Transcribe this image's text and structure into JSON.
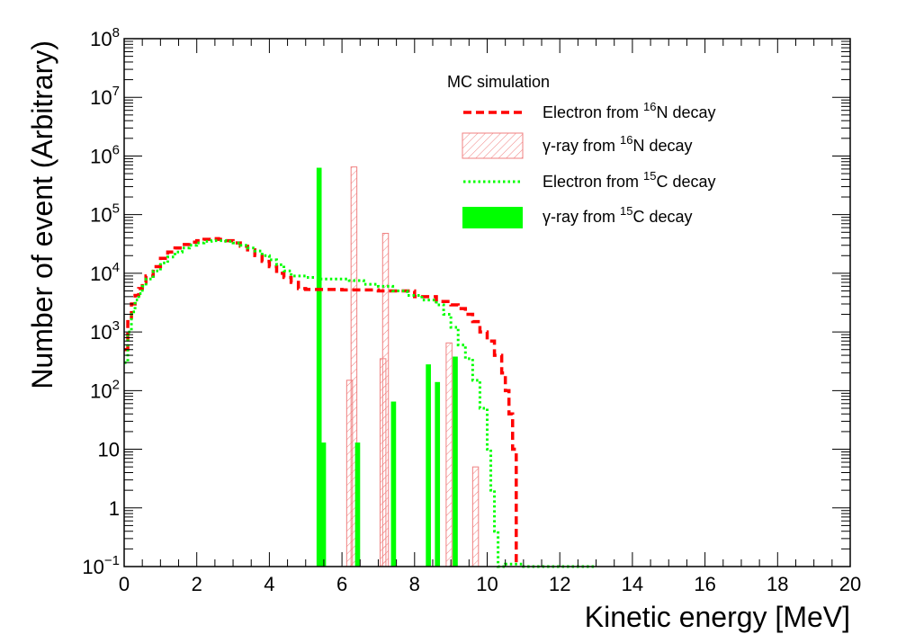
{
  "chart_data": {
    "type": "histogram",
    "title": "",
    "xlabel": "Kinetic energy [MeV]",
    "ylabel": "Number of event (Arbitrary)",
    "x_scale": "linear",
    "y_scale": "log",
    "xlim": [
      0,
      20
    ],
    "ylim": [
      0.1,
      100000000
    ],
    "x_ticks": [
      0,
      2,
      4,
      6,
      8,
      10,
      12,
      14,
      16,
      18,
      20
    ],
    "x_tick_labels": [
      "0",
      "2",
      "4",
      "6",
      "8",
      "10",
      "12",
      "14",
      "16",
      "18",
      "20"
    ],
    "y_ticks": [
      {
        "value": 0.1,
        "base": "10",
        "exp": "−1"
      },
      {
        "value": 1,
        "label": "1"
      },
      {
        "value": 10,
        "label": "10"
      },
      {
        "value": 100,
        "base": "10",
        "exp": "2"
      },
      {
        "value": 1000,
        "base": "10",
        "exp": "3"
      },
      {
        "value": 10000,
        "base": "10",
        "exp": "4"
      },
      {
        "value": 100000,
        "base": "10",
        "exp": "5"
      },
      {
        "value": 1000000,
        "base": "10",
        "exp": "6"
      },
      {
        "value": 10000000,
        "base": "10",
        "exp": "7"
      },
      {
        "value": 100000000,
        "base": "10",
        "exp": "8"
      }
    ],
    "legend": {
      "header": "MC simulation",
      "entries": [
        {
          "pre": "Electron from ",
          "sup": "16",
          "post": "N decay"
        },
        {
          "pre": "γ-ray from ",
          "sup": "16",
          "post": "N decay"
        },
        {
          "pre": "Electron from ",
          "sup": "15",
          "post": "C decay"
        },
        {
          "pre": "γ-ray from ",
          "sup": "15",
          "post": "C decay"
        }
      ]
    },
    "colors": {
      "electron_N16": "#ff0000",
      "gamma_N16": "#f08080",
      "electron_C15": "#00ff00",
      "gamma_C15": "#00ff00"
    },
    "series": [
      {
        "name": "Electron from 16N decay",
        "style": "dashed-step",
        "x": [
          0,
          0.1,
          0.2,
          0.3,
          0.4,
          0.5,
          0.6,
          0.8,
          1.0,
          1.2,
          1.4,
          1.6,
          1.8,
          2.0,
          2.2,
          2.4,
          2.6,
          2.8,
          3.0,
          3.2,
          3.4,
          3.6,
          3.8,
          4.0,
          4.2,
          4.4,
          4.6,
          4.8,
          5.0,
          5.4,
          6.0,
          7.0,
          8.0,
          8.6,
          9.0,
          9.2,
          9.4,
          9.6,
          9.8,
          10.0,
          10.2,
          10.4,
          10.5,
          10.6,
          10.7,
          10.8
        ],
        "values": [
          500,
          1500,
          3000,
          4200,
          5500,
          7000,
          9000,
          13000,
          18000,
          23000,
          27000,
          31000,
          34000,
          36000,
          38000,
          39000,
          38000,
          36000,
          33000,
          29000,
          25000,
          20000,
          16000,
          13000,
          10000,
          8500,
          7000,
          5500,
          5300,
          5300,
          5200,
          5000,
          4000,
          3300,
          2900,
          2500,
          2000,
          1500,
          1000,
          700,
          400,
          200,
          100,
          40,
          10,
          0.1
        ]
      },
      {
        "name": "Electron from 15C decay",
        "style": "dotted-step",
        "x": [
          0,
          0.1,
          0.2,
          0.3,
          0.4,
          0.5,
          0.6,
          0.8,
          1.0,
          1.2,
          1.4,
          1.6,
          1.8,
          2.0,
          2.2,
          2.4,
          2.6,
          2.8,
          3.0,
          3.2,
          3.4,
          3.6,
          3.8,
          4.0,
          4.2,
          4.4,
          4.6,
          5.0,
          5.4,
          5.8,
          6.2,
          6.6,
          7.0,
          7.4,
          7.8,
          8.2,
          8.6,
          8.8,
          9.0,
          9.2,
          9.4,
          9.6,
          9.8,
          10.0,
          10.1,
          10.2,
          10.3,
          10.5,
          11.0,
          13.0
        ],
        "values": [
          300,
          1000,
          2200,
          3500,
          4500,
          6000,
          8000,
          11000,
          15000,
          19000,
          23000,
          27000,
          30000,
          33000,
          35000,
          36000,
          36000,
          35000,
          33000,
          30000,
          27000,
          24000,
          20000,
          17000,
          14000,
          11000,
          9000,
          8500,
          8000,
          8000,
          7500,
          6500,
          6000,
          5000,
          4200,
          3500,
          2900,
          2000,
          1200,
          600,
          350,
          150,
          50,
          10,
          2,
          0.4,
          0.1,
          0.11,
          0.1,
          0.1
        ]
      },
      {
        "name": "γ-ray from 16N decay",
        "style": "hatched-bars",
        "bars": [
          {
            "x": 6.13,
            "value": 150
          },
          {
            "x": 6.25,
            "value": 650000
          },
          {
            "x": 7.05,
            "value": 350
          },
          {
            "x": 7.12,
            "value": 48000
          },
          {
            "x": 8.87,
            "value": 650
          },
          {
            "x": 9.6,
            "value": 5
          }
        ],
        "bar_width": 0.16
      },
      {
        "name": "γ-ray from 15C decay",
        "style": "filled-bars",
        "bars": [
          {
            "x": 5.3,
            "value": 630000
          },
          {
            "x": 5.42,
            "value": 13
          },
          {
            "x": 6.36,
            "value": 13
          },
          {
            "x": 7.35,
            "value": 65
          },
          {
            "x": 8.31,
            "value": 280
          },
          {
            "x": 8.56,
            "value": 140
          },
          {
            "x": 9.05,
            "value": 380
          }
        ],
        "bar_width": 0.14
      }
    ]
  }
}
